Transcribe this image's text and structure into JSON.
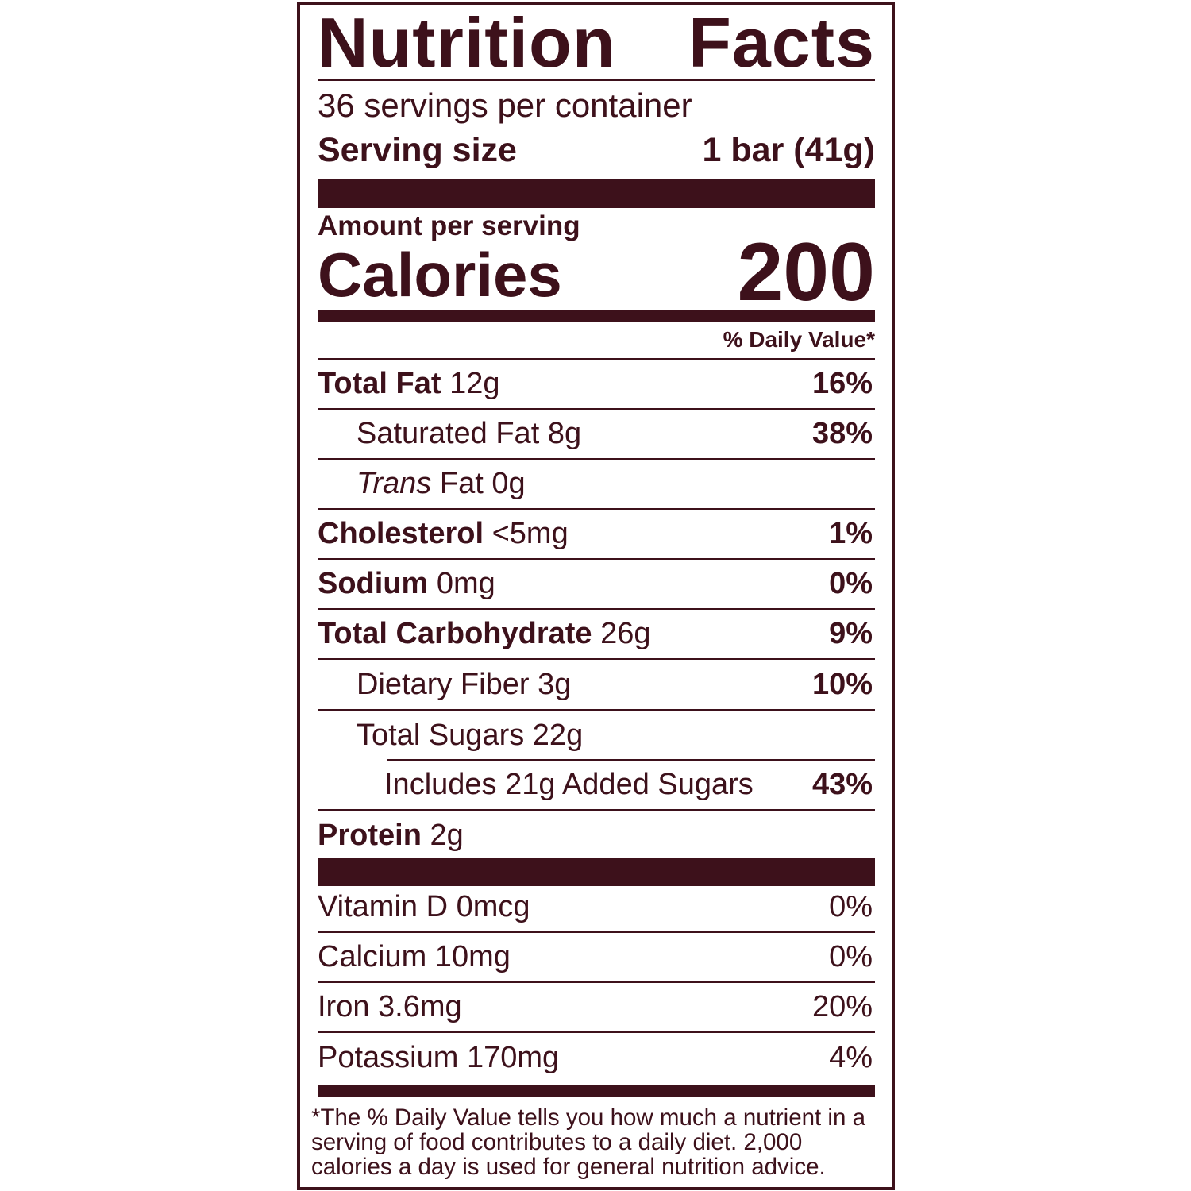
{
  "colors": {
    "label": "#3d111b"
  },
  "title": [
    "Nutrition",
    "Facts"
  ],
  "servings_per_container": "36 servings per container",
  "serving_size": {
    "label": "Serving size",
    "value": "1 bar (41g)"
  },
  "amount_per_serving": "Amount per serving",
  "calories": {
    "label": "Calories",
    "value": "200"
  },
  "daily_value_header": "% Daily Value*",
  "nutrients": [
    {
      "name": "Total Fat",
      "amount": "12g",
      "dv": "16%"
    },
    {
      "name": "Saturated Fat",
      "amount": "8g",
      "dv": "38%"
    },
    {
      "name_italic": "Trans",
      "name": "Fat",
      "amount": "0g",
      "dv": ""
    },
    {
      "name": "Cholesterol",
      "amount": "<5mg",
      "dv": "1%"
    },
    {
      "name": "Sodium",
      "amount": "0mg",
      "dv": "0%"
    },
    {
      "name": "Total Carbohydrate",
      "amount": "26g",
      "dv": "9%"
    },
    {
      "name": "Dietary Fiber",
      "amount": "3g",
      "dv": "10%"
    },
    {
      "name": "Total Sugars",
      "amount": "22g",
      "dv": ""
    },
    {
      "name": "Includes 21g Added Sugars",
      "dv": "43%"
    },
    {
      "name": "Protein",
      "amount": "2g",
      "dv": ""
    }
  ],
  "vitamins": [
    {
      "label": "Vitamin D 0mcg",
      "dv": "0%"
    },
    {
      "label": "Calcium 10mg",
      "dv": "0%"
    },
    {
      "label": "Iron 3.6mg",
      "dv": "20%"
    },
    {
      "label": "Potassium 170mg",
      "dv": "4%"
    }
  ],
  "footnote": "*The % Daily Value tells you how much a nutrient in a serving of food contributes to a daily diet. 2,000 calories a day is used for general nutrition advice."
}
